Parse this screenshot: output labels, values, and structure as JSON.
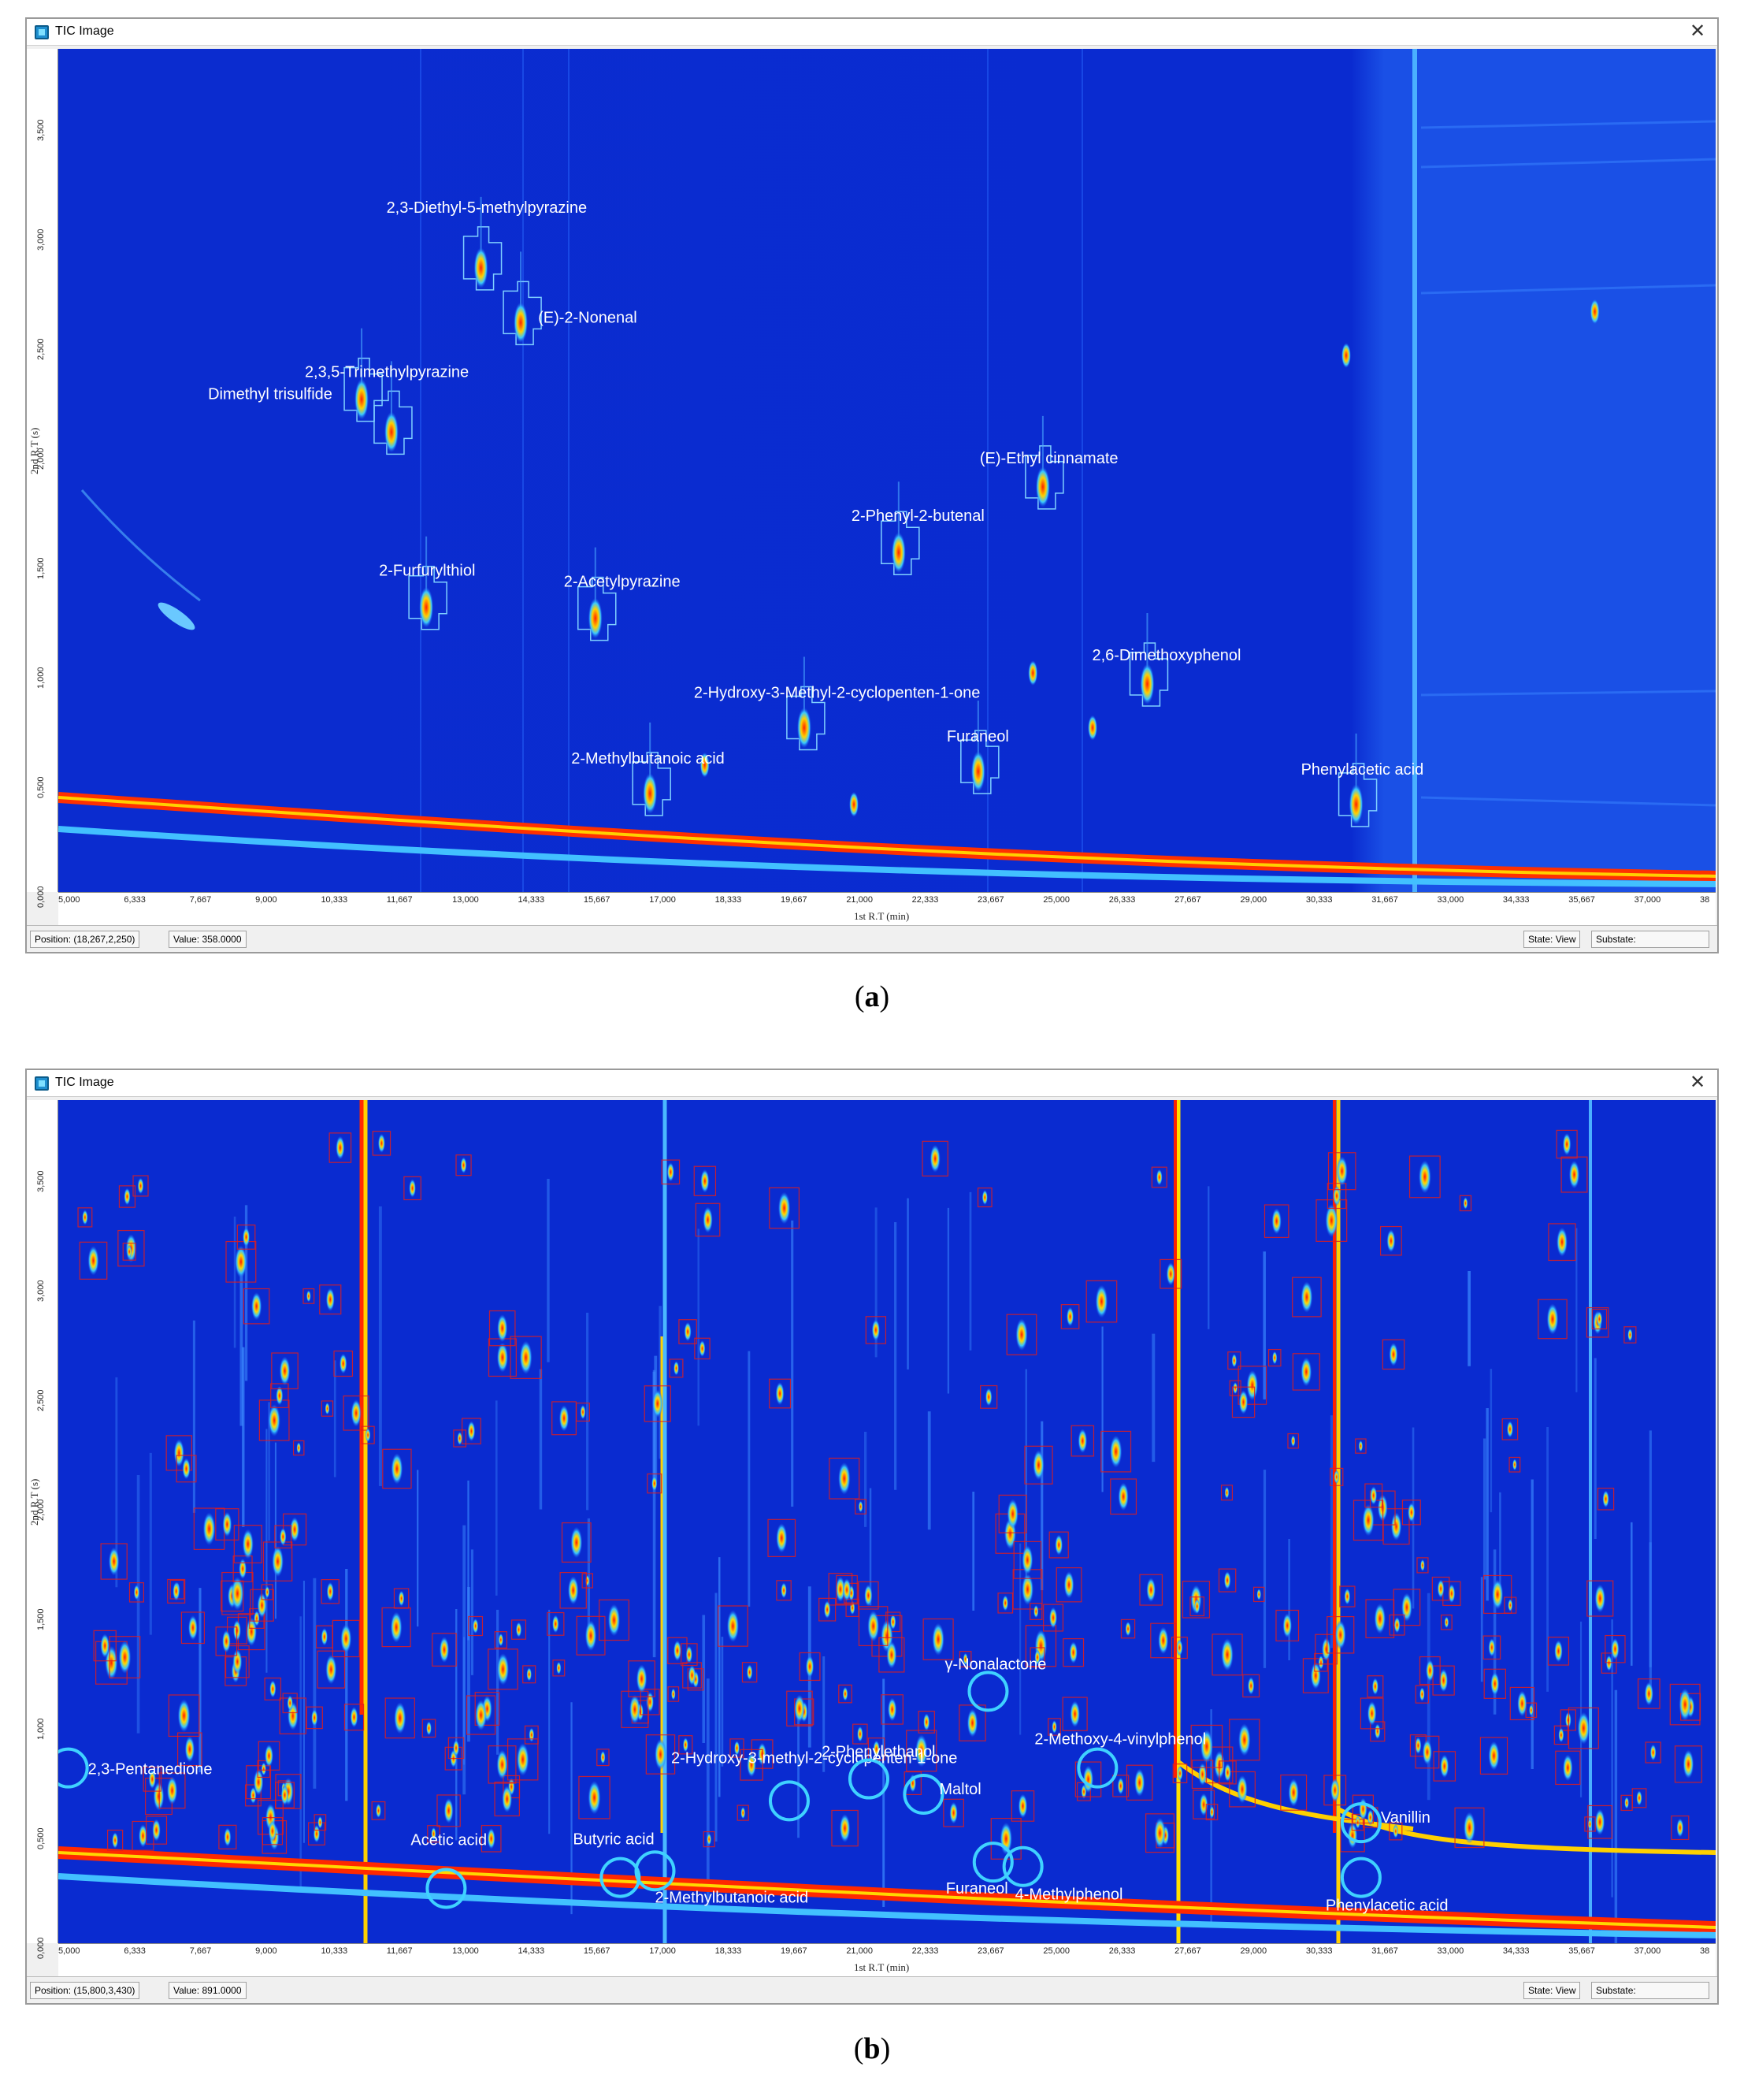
{
  "panels": [
    {
      "id": "a",
      "window_title": "TIC Image",
      "y_ticks": [
        "0,000",
        "0,500",
        "1,000",
        "1,500",
        "2,000",
        "2,500",
        "3,000",
        "3,500"
      ],
      "y_label": "2nd R.T (s)",
      "x_ticks": [
        "5,000",
        "6,333",
        "7,667",
        "9,000",
        "10,333",
        "11,667",
        "13,000",
        "14,333",
        "15,667",
        "17,000",
        "18,333",
        "19,667",
        "21,000",
        "22,333",
        "23,667",
        "25,000",
        "26,333",
        "27,667",
        "29,000",
        "30,333",
        "31,667",
        "33,000",
        "34,333",
        "35,667",
        "37,000",
        "38"
      ],
      "x_label": "1st R.T (min)",
      "status": {
        "position": "Position: (18,267,2,250)",
        "value": "Value: 358.0000",
        "state": "State: View",
        "substate": "Substate:"
      },
      "caption_open": "(",
      "caption_letter": "a",
      "caption_close": ")",
      "compounds": [
        {
          "name": "2,3-Diethyl-5-methylpyrazine",
          "rt1": 13.5,
          "rt2": 2.85
        },
        {
          "name": "(E)-2-Nonenal",
          "rt1": 14.3,
          "rt2": 2.6
        },
        {
          "name": "2,3,5-Trimethylpyrazine",
          "rt1": 11.7,
          "rt2": 2.1
        },
        {
          "name": "Dimethyl trisulfide",
          "rt1": 11.1,
          "rt2": 2.25
        },
        {
          "name": "(E)-Ethyl cinnamate",
          "rt1": 24.8,
          "rt2": 1.85
        },
        {
          "name": "2-Phenyl-2-butenal",
          "rt1": 21.9,
          "rt2": 1.55
        },
        {
          "name": "2-Furfurylthiol",
          "rt1": 12.4,
          "rt2": 1.3
        },
        {
          "name": "2-Acetylpyrazine",
          "rt1": 15.8,
          "rt2": 1.25
        },
        {
          "name": "2,6-Dimethoxyphenol",
          "rt1": 26.9,
          "rt2": 0.95
        },
        {
          "name": "2-Hydroxy-3-Methyl-2-cyclopenten-1-one",
          "rt1": 20.0,
          "rt2": 0.75
        },
        {
          "name": "2-Methylbutanoic acid",
          "rt1": 16.9,
          "rt2": 0.45
        },
        {
          "name": "Furaneol",
          "rt1": 23.5,
          "rt2": 0.55
        },
        {
          "name": "Phenylacetic acid",
          "rt1": 31.1,
          "rt2": 0.4
        }
      ]
    },
    {
      "id": "b",
      "window_title": "TIC Image",
      "y_ticks": [
        "0,000",
        "0,500",
        "1,000",
        "1,500",
        "2,000",
        "2,500",
        "3,000",
        "3,500"
      ],
      "y_label": "2nd R.T (s)",
      "x_ticks": [
        "5,000",
        "6,333",
        "7,667",
        "9,000",
        "10,333",
        "11,667",
        "13,000",
        "14,333",
        "15,667",
        "17,000",
        "18,333",
        "19,667",
        "21,000",
        "22,333",
        "23,667",
        "25,000",
        "26,333",
        "27,667",
        "29,000",
        "30,333",
        "31,667",
        "33,000",
        "34,333",
        "35,667",
        "37,000",
        "38"
      ],
      "x_label": "1st R.T (min)",
      "status": {
        "position": "Position: (15,800,3,430)",
        "value": "Value: 891.0000",
        "state": "State: View",
        "substate": "Substate:"
      },
      "caption_open": "(",
      "caption_letter": "b",
      "caption_close": ")",
      "compounds": [
        {
          "name": "γ-Nonalactone",
          "rt1": 23.7,
          "rt2": 1.15
        },
        {
          "name": "2,3-Pentanedione",
          "rt1": 5.2,
          "rt2": 0.8
        },
        {
          "name": "2-Hydroxy-3-methyl-2-cyclopenten-1-one",
          "rt1": 19.7,
          "rt2": 0.65
        },
        {
          "name": "2-Phenylethanol",
          "rt1": 21.3,
          "rt2": 0.75
        },
        {
          "name": "2-Methoxy-4-vinylphenol",
          "rt1": 25.9,
          "rt2": 0.8
        },
        {
          "name": "Maltol",
          "rt1": 22.4,
          "rt2": 0.68
        },
        {
          "name": "Vanillin",
          "rt1": 31.2,
          "rt2": 0.55
        },
        {
          "name": "Acetic acid",
          "rt1": 12.8,
          "rt2": 0.25
        },
        {
          "name": "Butyric acid",
          "rt1": 16.3,
          "rt2": 0.3
        },
        {
          "name": "2-Methylbutanoic acid",
          "rt1": 17.0,
          "rt2": 0.33
        },
        {
          "name": "Furaneol",
          "rt1": 23.8,
          "rt2": 0.37
        },
        {
          "name": "4-Methylphenol",
          "rt1": 24.4,
          "rt2": 0.35
        },
        {
          "name": "Phenylacetic acid",
          "rt1": 31.2,
          "rt2": 0.3
        }
      ]
    }
  ]
}
